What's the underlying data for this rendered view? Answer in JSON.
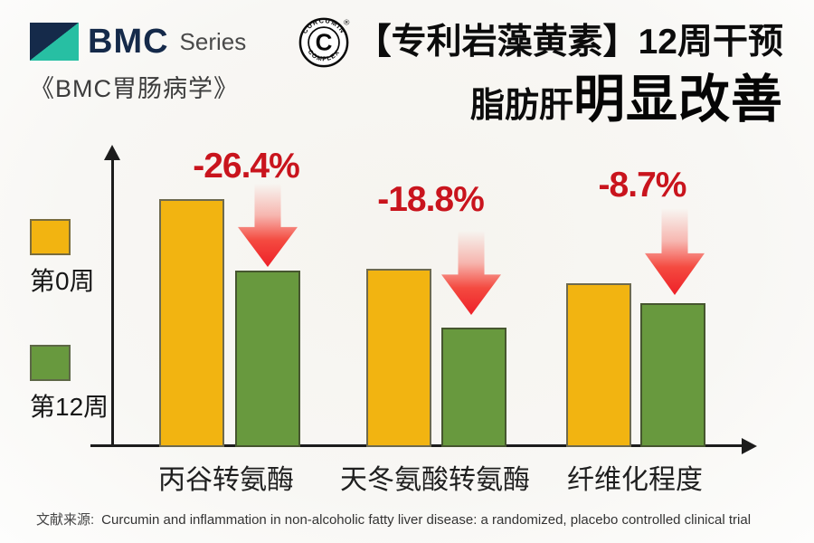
{
  "branding": {
    "bmc_logo_text": "BMC",
    "bmc_series_text": "Series",
    "bmc_journal": "《BMC胃肠病学》",
    "navy": "#152a4a",
    "teal": "#27bfa3"
  },
  "badge": {
    "letter": "C",
    "top_text": "CURCUMIN",
    "bottom_text": "COMPLEX",
    "registered_mark": "®"
  },
  "title": {
    "line1": "【专利岩藻黄素】12周干预",
    "line2_prefix": "脂肪肝",
    "line2_emphasis": "明显改善"
  },
  "chart_data": {
    "type": "bar",
    "title": "【专利岩藻黄素】12周干预 脂肪肝明显改善",
    "categories": [
      "丙谷转氨酶",
      "天冬氨酸转氨酶",
      "纤维化程度"
    ],
    "series": [
      {
        "name": "第0周",
        "color": "#f2b411",
        "border_color": "#6e6a4f",
        "values": [
          100,
          72,
          66
        ]
      },
      {
        "name": "第12周",
        "color": "#68993e",
        "border_color": "#46562f",
        "values": [
          71,
          48,
          58
        ]
      }
    ],
    "change_labels": [
      "-26.4%",
      "-18.8%",
      "-8.7%"
    ],
    "xlabel": "",
    "ylabel": "",
    "value_note": "no numeric axis shown; values are relative heights estimated from pixels with week-0 of first category = 100",
    "ylim": [
      0,
      110
    ],
    "grid": false,
    "legend_position": "left"
  },
  "colors": {
    "change_text_red": "#c9141d",
    "arrow_red": "#ee2028",
    "axis": "#1c1c1c",
    "background": "#f7f6f2"
  },
  "footer": {
    "label": "文献来源:",
    "source": "Curcumin and inflammation in non-alcoholic fatty liver disease: a randomized, placebo controlled clinical trial"
  }
}
